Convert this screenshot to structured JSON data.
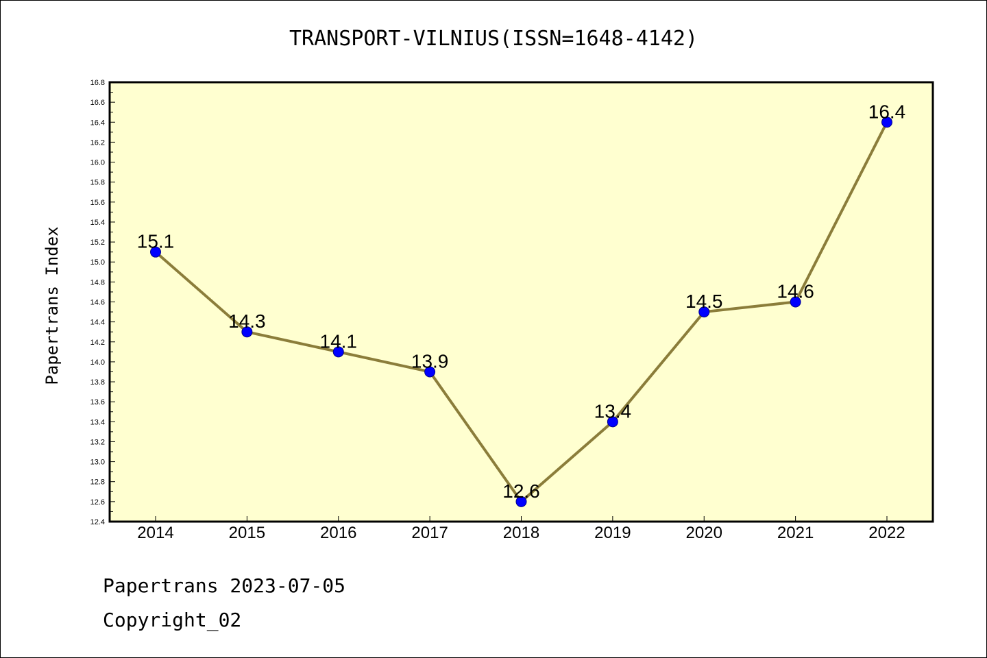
{
  "chart_data": {
    "type": "line",
    "title": "TRANSPORT-VILNIUS(ISSN=1648-4142)",
    "xlabel": "",
    "ylabel": "Papertrans Index",
    "x": [
      "2014",
      "2015",
      "2016",
      "2017",
      "2018",
      "2019",
      "2020",
      "2021",
      "2022"
    ],
    "series": [
      {
        "values": [
          15.1,
          14.3,
          14.1,
          13.9,
          12.6,
          13.4,
          14.5,
          14.6,
          16.4
        ]
      }
    ],
    "data_labels": [
      "15.1",
      "14.3",
      "14.1",
      "13.9",
      "12.6",
      "13.4",
      "14.5",
      "14.6",
      "16.4"
    ],
    "ylim": [
      12.4,
      16.8
    ],
    "yticks": [
      "12.4",
      "12.6",
      "12.8",
      "13.0",
      "13.2",
      "13.4",
      "13.6",
      "13.8",
      "14.0",
      "14.2",
      "14.4",
      "14.6",
      "14.8",
      "15.0",
      "15.2",
      "15.4",
      "15.6",
      "15.8",
      "16.0",
      "16.2",
      "16.4",
      "16.6",
      "16.8"
    ],
    "grid": false,
    "colors": {
      "plot_bg": "#ffffd0",
      "line": "#8b7d3a",
      "marker": "#0000ff"
    }
  },
  "footer": {
    "line1": "Papertrans 2023-07-05",
    "line2": "Copyright_02"
  }
}
